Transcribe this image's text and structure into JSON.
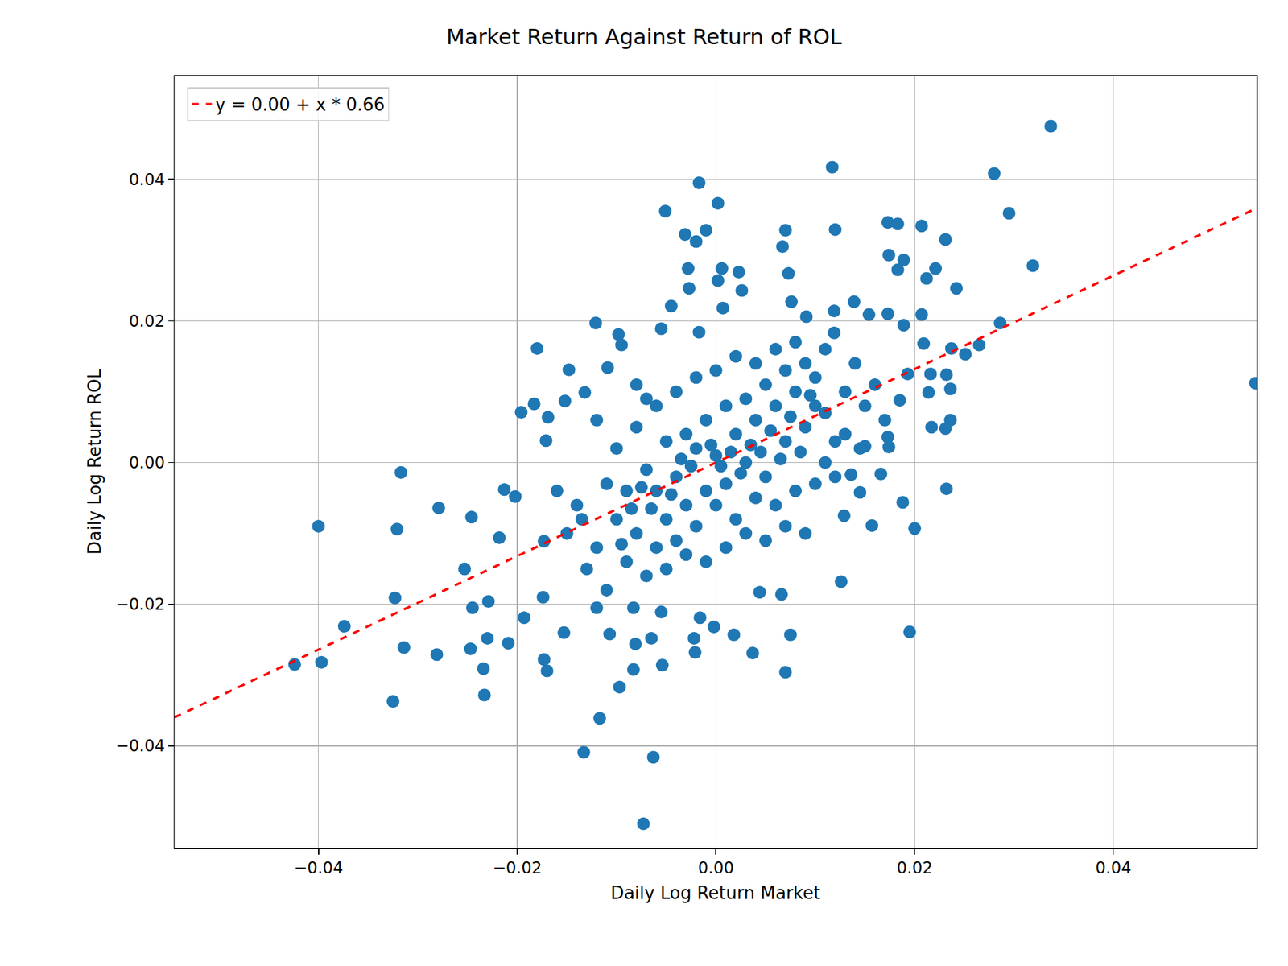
{
  "chart_data": {
    "type": "scatter",
    "title": "Market Return Against Return of ROL",
    "x_label": "Daily Log Return Market",
    "y_label": "Daily Log Return ROL",
    "color": "#1f77b4",
    "marker": "circle",
    "x": [
      0.0337,
      0.0117,
      0.028,
      -0.0017,
      0.0002,
      -0.0051,
      0.0295,
      0.0173,
      0.0183,
      0.0207,
      0.007,
      0.012,
      -0.001,
      -0.0031,
      -0.002,
      0.0231,
      0.0067,
      0.0174,
      0.0189,
      0.0319,
      0.0221,
      -0.0028,
      0.0006,
      0.0023,
      0.0183,
      0.0073,
      0.0212,
      0.0002,
      -0.0027,
      0.0026,
      0.0242,
      -0.0045,
      0.0007,
      0.0139,
      0.0076,
      0.0119,
      0.0154,
      0.0173,
      0.0207,
      -0.0121,
      0.0091,
      0.0286,
      0.0189,
      -0.0055,
      -0.0098,
      -0.0017,
      0.0119,
      -0.0095,
      0.0209,
      -0.018,
      0.0237,
      0.0251,
      0.0265,
      -0.0148,
      -0.0109,
      0.0193,
      0.0216,
      0.0232,
      -0.0132,
      -0.0152,
      -0.0183,
      0.0185,
      0.0214,
      0.0236,
      -0.0196,
      -0.0169,
      0.0217,
      0.0236,
      0.0231,
      -0.0171,
      0.0173,
      0.0174,
      0.015,
      0.0543,
      -0.0317,
      0.0166,
      0.0136,
      0.0145,
      0.0232,
      -0.0213,
      -0.0202,
      -0.04,
      -0.0279,
      -0.0246,
      -0.0321,
      -0.0218,
      0.0129,
      0.0157,
      0.02,
      0.0188,
      -0.0253,
      -0.0173,
      0.0126,
      0.0044,
      0.0066,
      -0.0323,
      -0.0229,
      -0.0245,
      -0.0174,
      -0.0374,
      -0.0193,
      -0.0016,
      0.0075,
      0.0018,
      -0.0002,
      -0.0055,
      0.0195,
      -0.023,
      -0.0209,
      -0.0153,
      -0.0107,
      -0.0314,
      -0.0281,
      -0.0247,
      -0.0173,
      -0.017,
      -0.0021,
      0.0037,
      -0.0424,
      -0.0397,
      -0.0234,
      -0.0083,
      -0.0054,
      0.007,
      -0.0325,
      -0.0233,
      -0.0097,
      -0.0117,
      -0.0133,
      -0.0063,
      -0.0073,
      -0.0081,
      -0.0065,
      -0.0022,
      -0.0083,
      -0.012,
      -0.012,
      -0.01,
      -0.008,
      -0.006,
      -0.005,
      -0.004,
      -0.003,
      -0.002,
      -0.001,
      0.0,
      0.001,
      0.002,
      0.003,
      0.004,
      0.005,
      0.006,
      0.007,
      0.008,
      0.009,
      0.01,
      0.011,
      0.012,
      0.013,
      0.014,
      0.015,
      -0.014,
      -0.013,
      -0.011,
      -0.009,
      -0.007,
      -0.006,
      -0.005,
      -0.004,
      -0.003,
      -0.002,
      -0.001,
      0.0,
      0.001,
      0.002,
      0.003,
      0.004,
      0.005,
      0.006,
      0.007,
      0.008,
      0.009,
      0.01,
      0.011,
      0.012,
      0.013,
      -0.01,
      -0.008,
      -0.007,
      -0.006,
      -0.005,
      -0.004,
      -0.003,
      -0.002,
      -0.001,
      0.0,
      0.001,
      0.002,
      0.003,
      0.004,
      0.005,
      0.006,
      0.007,
      0.008,
      0.009,
      0.01,
      -0.009,
      -0.008,
      -0.007,
      -0.011,
      -0.012,
      -0.015,
      -0.016,
      -0.0135,
      0.016,
      0.017,
      0.0145,
      0.011,
      0.0005,
      -0.0005,
      0.0015,
      0.0025,
      -0.0025,
      0.0035,
      -0.0035,
      0.0045,
      0.0055,
      -0.0045,
      0.0065,
      -0.0065,
      0.0075,
      -0.0075,
      0.0085,
      -0.0085,
      0.0095,
      -0.0095
    ],
    "values": [
      0.0475,
      0.0417,
      0.0408,
      0.0395,
      0.0366,
      0.0355,
      0.0352,
      0.0339,
      0.0337,
      0.0334,
      0.0328,
      0.0329,
      0.0328,
      0.0322,
      0.0312,
      0.0315,
      0.0305,
      0.0293,
      0.0286,
      0.0278,
      0.0274,
      0.0274,
      0.0274,
      0.0269,
      0.0272,
      0.0267,
      0.026,
      0.0257,
      0.0246,
      0.0243,
      0.0246,
      0.0221,
      0.0218,
      0.0227,
      0.0227,
      0.0214,
      0.0209,
      0.021,
      0.0209,
      0.0197,
      0.0206,
      0.0197,
      0.0194,
      0.0189,
      0.0181,
      0.0184,
      0.0183,
      0.0166,
      0.0168,
      0.0161,
      0.0161,
      0.0153,
      0.0166,
      0.0131,
      0.0134,
      0.0125,
      0.0125,
      0.0124,
      0.0099,
      0.0087,
      0.0083,
      0.0088,
      0.0099,
      0.0104,
      0.0071,
      0.0064,
      0.005,
      0.006,
      0.0048,
      0.0031,
      0.0036,
      0.0022,
      0.0023,
      0.0112,
      -0.0014,
      -0.0016,
      -0.0017,
      -0.0042,
      -0.0037,
      -0.0038,
      -0.0048,
      -0.009,
      -0.0064,
      -0.0077,
      -0.0094,
      -0.0106,
      -0.0075,
      -0.0089,
      -0.0093,
      -0.0056,
      -0.015,
      -0.0111,
      -0.0168,
      -0.0183,
      -0.0186,
      -0.0191,
      -0.0196,
      -0.0205,
      -0.019,
      -0.0231,
      -0.0219,
      -0.0219,
      -0.0243,
      -0.0243,
      -0.0232,
      -0.0211,
      -0.0239,
      -0.0248,
      -0.0255,
      -0.024,
      -0.0242,
      -0.0261,
      -0.0271,
      -0.0263,
      -0.0278,
      -0.0294,
      -0.0268,
      -0.0269,
      -0.0285,
      -0.0282,
      -0.0291,
      -0.0292,
      -0.0286,
      -0.0296,
      -0.0337,
      -0.0328,
      -0.0317,
      -0.0361,
      -0.0409,
      -0.0416,
      -0.051,
      -0.0256,
      -0.0248,
      -0.0248,
      -0.0205,
      -0.0205,
      -0.012,
      -0.008,
      -0.01,
      -0.004,
      -0.008,
      -0.002,
      -0.006,
      0.002,
      -0.004,
      0.001,
      -0.003,
      0.004,
      0.0,
      0.006,
      -0.002,
      0.008,
      0.003,
      0.01,
      0.005,
      0.012,
      0.007,
      0.003,
      0.01,
      0.014,
      0.008,
      -0.006,
      -0.015,
      -0.003,
      -0.014,
      -0.001,
      -0.012,
      0.003,
      -0.011,
      0.004,
      -0.009,
      0.006,
      -0.006,
      0.008,
      -0.008,
      0.009,
      -0.005,
      0.011,
      -0.006,
      0.013,
      -0.004,
      0.014,
      -0.003,
      0.016,
      -0.002,
      0.004,
      0.002,
      0.005,
      -0.016,
      0.008,
      -0.015,
      0.01,
      -0.013,
      0.012,
      -0.014,
      0.013,
      -0.012,
      0.015,
      -0.01,
      0.014,
      -0.011,
      0.016,
      -0.009,
      0.017,
      -0.01,
      0.008,
      -0.004,
      0.011,
      0.009,
      -0.018,
      0.006,
      -0.01,
      -0.004,
      -0.008,
      0.011,
      0.006,
      0.002,
      0.0,
      -0.0005,
      0.0025,
      0.0015,
      -0.0015,
      -0.0005,
      0.0025,
      0.0005,
      0.0015,
      0.0045,
      -0.0045,
      0.0005,
      -0.0065,
      0.0065,
      -0.0035,
      0.0015,
      -0.0065,
      0.0095,
      -0.0115
    ],
    "fit": {
      "name": "y = 0.00 + x * 0.66",
      "intercept": 0.0,
      "slope": 0.66,
      "color": "#ff0000",
      "line_style": "dashed"
    },
    "xlim": [
      -0.0545,
      0.0544
    ],
    "ylim": [
      -0.0544,
      0.0546
    ],
    "xticks": [
      {
        "value": -0.04,
        "label": "−0.04"
      },
      {
        "value": -0.02,
        "label": "−0.02"
      },
      {
        "value": 0.0,
        "label": "0.00"
      },
      {
        "value": 0.02,
        "label": "0.02"
      },
      {
        "value": 0.04,
        "label": "0.04"
      }
    ],
    "yticks": [
      {
        "value": -0.04,
        "label": "−0.04"
      },
      {
        "value": -0.02,
        "label": "−0.02"
      },
      {
        "value": 0.0,
        "label": "0.00"
      },
      {
        "value": 0.02,
        "label": "0.02"
      },
      {
        "value": 0.04,
        "label": "0.04"
      }
    ],
    "grid": true,
    "legend": "upper left"
  }
}
